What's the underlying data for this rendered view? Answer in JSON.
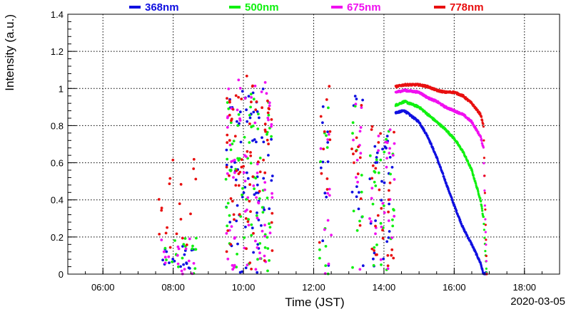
{
  "chart_data": {
    "type": "scatter",
    "title": "",
    "xlabel": "Time (JST)",
    "ylabel": "Intensity (a.u.)",
    "date_label": "2020-03-05",
    "xlim": [
      "05:00",
      "19:00"
    ],
    "ylim": [
      0,
      1.4
    ],
    "x_ticks": [
      "06:00",
      "08:00",
      "10:00",
      "12:00",
      "14:00",
      "16:00",
      "18:00"
    ],
    "y_ticks": [
      "0",
      "0.2",
      "0.4",
      "0.6",
      "0.8",
      "1",
      "1.2",
      "1.4"
    ],
    "grid": true,
    "legend_position": "top",
    "series": [
      {
        "name": "368nm",
        "color": "#1010e0",
        "scatter_segments": [
          {
            "start": "07:35",
            "end": "08:40",
            "low": 0.0,
            "high": 0.15,
            "density": 0.3
          },
          {
            "start": "09:30",
            "end": "10:50",
            "low": 0.0,
            "high": 1.0,
            "density": 1.0
          },
          {
            "start": "12:10",
            "end": "12:30",
            "low": 0.0,
            "high": 1.08,
            "density": 0.6
          },
          {
            "start": "13:05",
            "end": "13:25",
            "low": 0.0,
            "high": 1.0,
            "density": 0.6
          },
          {
            "start": "13:35",
            "end": "14:18",
            "low": 0.0,
            "high": 0.75,
            "density": 0.7
          }
        ],
        "curve": [
          [
            "14:20",
            0.87
          ],
          [
            "14:35",
            0.88
          ],
          [
            "15:00",
            0.82
          ],
          [
            "15:15",
            0.74
          ],
          [
            "15:30",
            0.63
          ],
          [
            "15:45",
            0.5
          ],
          [
            "16:00",
            0.37
          ],
          [
            "16:15",
            0.25
          ],
          [
            "16:30",
            0.16
          ],
          [
            "16:45",
            0.06
          ],
          [
            "16:50",
            0.0
          ]
        ]
      },
      {
        "name": "500nm",
        "color": "#10f010",
        "scatter_segments": [
          {
            "start": "07:35",
            "end": "08:40",
            "low": 0.0,
            "high": 0.2,
            "density": 0.3
          },
          {
            "start": "09:30",
            "end": "10:50",
            "low": 0.0,
            "high": 1.0,
            "density": 1.0
          },
          {
            "start": "12:10",
            "end": "12:30",
            "low": 0.0,
            "high": 1.0,
            "density": 0.6
          },
          {
            "start": "13:05",
            "end": "13:25",
            "low": 0.0,
            "high": 1.0,
            "density": 0.6
          },
          {
            "start": "13:35",
            "end": "14:18",
            "low": 0.0,
            "high": 0.8,
            "density": 0.7
          }
        ],
        "curve": [
          [
            "14:20",
            0.91
          ],
          [
            "14:35",
            0.93
          ],
          [
            "15:00",
            0.9
          ],
          [
            "15:15",
            0.86
          ],
          [
            "15:30",
            0.82
          ],
          [
            "15:45",
            0.78
          ],
          [
            "16:00",
            0.73
          ],
          [
            "16:15",
            0.66
          ],
          [
            "16:30",
            0.56
          ],
          [
            "16:45",
            0.4
          ],
          [
            "16:50",
            0.3
          ]
        ]
      },
      {
        "name": "675nm",
        "color": "#f010f0",
        "scatter_segments": [
          {
            "start": "07:35",
            "end": "08:40",
            "low": 0.0,
            "high": 0.2,
            "density": 0.3
          },
          {
            "start": "09:30",
            "end": "10:50",
            "low": 0.0,
            "high": 1.05,
            "density": 1.0
          },
          {
            "start": "12:10",
            "end": "12:30",
            "low": 0.0,
            "high": 1.05,
            "density": 0.6
          },
          {
            "start": "13:05",
            "end": "13:25",
            "low": 0.0,
            "high": 1.0,
            "density": 0.6
          },
          {
            "start": "13:35",
            "end": "14:18",
            "low": 0.0,
            "high": 0.85,
            "density": 0.7
          }
        ],
        "curve": [
          [
            "14:20",
            0.98
          ],
          [
            "14:35",
            0.99
          ],
          [
            "15:00",
            0.98
          ],
          [
            "15:15",
            0.95
          ],
          [
            "15:30",
            0.93
          ],
          [
            "15:45",
            0.9
          ],
          [
            "16:00",
            0.88
          ],
          [
            "16:15",
            0.86
          ],
          [
            "16:30",
            0.82
          ],
          [
            "16:45",
            0.74
          ],
          [
            "16:50",
            0.68
          ]
        ]
      },
      {
        "name": "778nm",
        "color": "#e81010",
        "scatter_segments": [
          {
            "start": "07:35",
            "end": "08:40",
            "low": 0.0,
            "high": 0.65,
            "density": 0.35
          },
          {
            "start": "09:30",
            "end": "10:50",
            "low": 0.0,
            "high": 1.07,
            "density": 1.0
          },
          {
            "start": "12:10",
            "end": "12:30",
            "low": 0.0,
            "high": 1.05,
            "density": 0.6
          },
          {
            "start": "13:05",
            "end": "13:25",
            "low": 0.0,
            "high": 1.03,
            "density": 0.6
          },
          {
            "start": "13:35",
            "end": "14:18",
            "low": 0.0,
            "high": 0.9,
            "density": 0.7
          }
        ],
        "curve": [
          [
            "14:20",
            1.01
          ],
          [
            "14:35",
            1.02
          ],
          [
            "15:00",
            1.02
          ],
          [
            "15:15",
            1.01
          ],
          [
            "15:30",
            0.99
          ],
          [
            "15:45",
            0.98
          ],
          [
            "16:00",
            0.98
          ],
          [
            "16:15",
            0.96
          ],
          [
            "16:30",
            0.92
          ],
          [
            "16:45",
            0.86
          ],
          [
            "16:50",
            0.8
          ]
        ]
      }
    ]
  }
}
